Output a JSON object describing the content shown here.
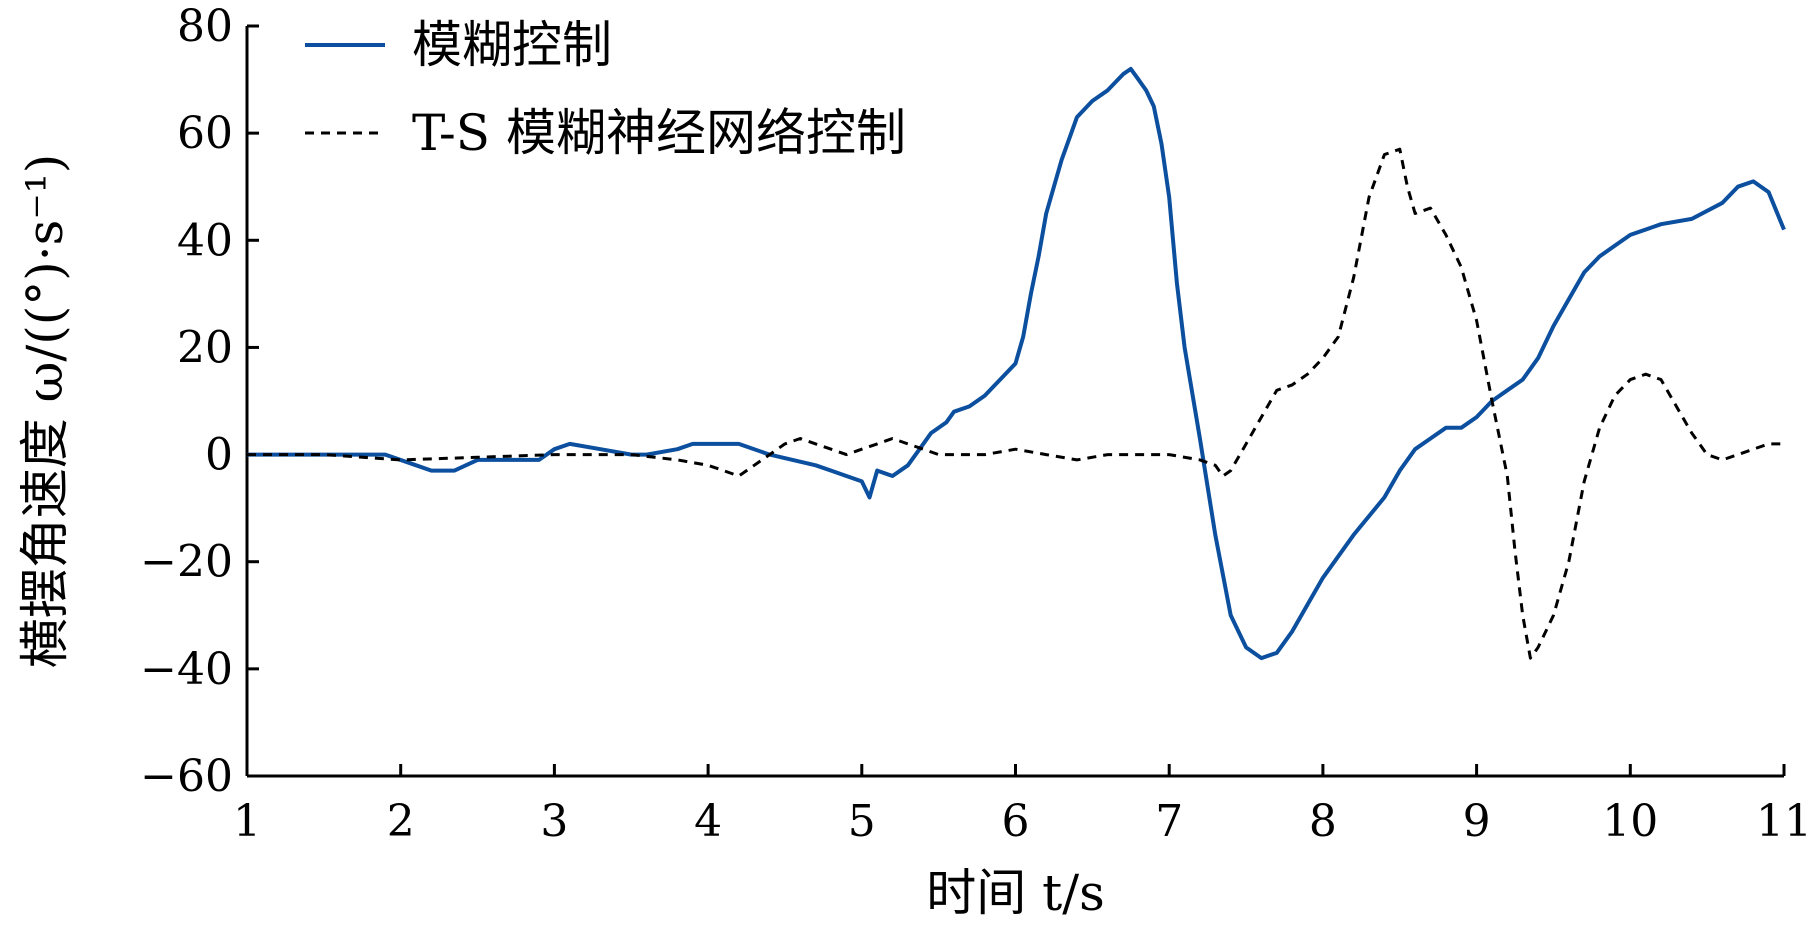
{
  "chart_data": {
    "type": "line",
    "xlabel": "时间 t/s",
    "ylabel": "横摆角速度 ω/((°)·s⁻¹)",
    "xlim": [
      1,
      11
    ],
    "ylim": [
      -60,
      80
    ],
    "xticks": [
      1,
      2,
      3,
      4,
      5,
      6,
      7,
      8,
      9,
      10,
      11
    ],
    "yticks": [
      80,
      60,
      40,
      20,
      0,
      -20,
      -40,
      -60
    ],
    "ytick_labels": [
      "80",
      "60",
      "40",
      "20",
      "0",
      "−20",
      "−40",
      "−60"
    ],
    "grid": false,
    "legend_position": "top-left",
    "series": [
      {
        "name": "模糊控制",
        "color": "#0b4f9e",
        "style": "solid",
        "x": [
          1.0,
          1.5,
          1.9,
          2.1,
          2.2,
          2.35,
          2.5,
          2.7,
          2.9,
          3.0,
          3.1,
          3.3,
          3.5,
          3.6,
          3.8,
          3.9,
          4.1,
          4.2,
          4.4,
          4.55,
          4.7,
          4.8,
          4.9,
          5.0,
          5.05,
          5.1,
          5.2,
          5.3,
          5.4,
          5.45,
          5.55,
          5.6,
          5.7,
          5.8,
          5.9,
          6.0,
          6.05,
          6.1,
          6.15,
          6.2,
          6.3,
          6.4,
          6.5,
          6.6,
          6.7,
          6.75,
          6.8,
          6.85,
          6.9,
          6.95,
          7.0,
          7.05,
          7.1,
          7.2,
          7.3,
          7.4,
          7.5,
          7.6,
          7.7,
          7.8,
          7.9,
          8.0,
          8.2,
          8.4,
          8.5,
          8.6,
          8.7,
          8.8,
          8.9,
          9.0,
          9.1,
          9.2,
          9.3,
          9.4,
          9.5,
          9.6,
          9.7,
          9.8,
          9.9,
          10.0,
          10.2,
          10.4,
          10.6,
          10.7,
          10.8,
          10.9,
          11.0
        ],
        "y": [
          0,
          0,
          0,
          -2,
          -3,
          -3,
          -1,
          -1,
          -1,
          1,
          2,
          1,
          0,
          0,
          1,
          2,
          2,
          2,
          0,
          -1,
          -2,
          -3,
          -4,
          -5,
          -8,
          -3,
          -4,
          -2,
          2,
          4,
          6,
          8,
          9,
          11,
          14,
          17,
          22,
          30,
          37,
          45,
          55,
          63,
          66,
          68,
          71,
          72,
          70,
          68,
          65,
          58,
          48,
          32,
          20,
          3,
          -15,
          -30,
          -36,
          -38,
          -37,
          -33,
          -28,
          -23,
          -15,
          -8,
          -3,
          1,
          3,
          5,
          5,
          7,
          10,
          12,
          14,
          18,
          24,
          29,
          34,
          37,
          39,
          41,
          43,
          44,
          47,
          50,
          51,
          49,
          42
        ]
      },
      {
        "name": "T-S 模糊神经网络控制",
        "color": "#000000",
        "style": "dashed",
        "x": [
          1.0,
          1.5,
          2.0,
          2.5,
          3.0,
          3.5,
          3.8,
          4.0,
          4.1,
          4.2,
          4.3,
          4.4,
          4.5,
          4.6,
          4.7,
          4.8,
          4.9,
          5.0,
          5.1,
          5.2,
          5.3,
          5.4,
          5.5,
          5.6,
          5.8,
          6.0,
          6.2,
          6.4,
          6.6,
          6.8,
          7.0,
          7.2,
          7.3,
          7.35,
          7.4,
          7.5,
          7.6,
          7.7,
          7.8,
          7.9,
          8.0,
          8.1,
          8.2,
          8.3,
          8.4,
          8.5,
          8.55,
          8.6,
          8.7,
          8.8,
          8.9,
          9.0,
          9.1,
          9.2,
          9.25,
          9.3,
          9.35,
          9.4,
          9.5,
          9.6,
          9.7,
          9.8,
          9.9,
          10.0,
          10.1,
          10.2,
          10.3,
          10.4,
          10.5,
          10.6,
          10.7,
          10.8,
          10.9,
          11.0
        ],
        "y": [
          0,
          0,
          -1,
          -0.5,
          0,
          0,
          -1,
          -2,
          -3,
          -4,
          -2,
          0,
          2,
          3,
          2,
          1,
          0,
          1,
          2,
          3,
          2,
          1,
          0,
          0,
          0,
          1,
          0,
          -1,
          0,
          0,
          0,
          -1,
          -2,
          -4,
          -3,
          2,
          7,
          12,
          13,
          15,
          18,
          22,
          33,
          48,
          56,
          57,
          50,
          45,
          46,
          41,
          35,
          25,
          10,
          -4,
          -18,
          -30,
          -38,
          -36,
          -30,
          -20,
          -5,
          5,
          11,
          14,
          15,
          14,
          9,
          4,
          0,
          -1,
          0,
          1,
          2,
          2
        ]
      }
    ]
  }
}
